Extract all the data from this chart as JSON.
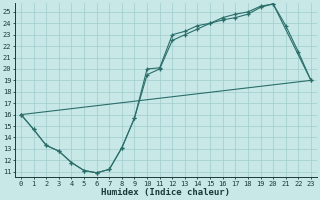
{
  "xlabel": "Humidex (Indice chaleur)",
  "bg_color": "#c8e8e8",
  "grid_color": "#a0cccc",
  "line_color": "#2a6e6a",
  "xlim": [
    -0.5,
    23.5
  ],
  "ylim": [
    10.5,
    25.8
  ],
  "xticks": [
    0,
    1,
    2,
    3,
    4,
    5,
    6,
    7,
    8,
    9,
    10,
    11,
    12,
    13,
    14,
    15,
    16,
    17,
    18,
    19,
    20,
    21,
    22,
    23
  ],
  "yticks": [
    11,
    12,
    13,
    14,
    15,
    16,
    17,
    18,
    19,
    20,
    21,
    22,
    23,
    24,
    25
  ],
  "curve1_x": [
    0,
    1,
    2,
    3,
    4,
    5,
    6,
    7,
    8,
    9,
    10,
    11,
    12,
    13,
    14,
    15,
    16,
    17,
    18,
    19,
    20,
    21,
    22,
    23
  ],
  "curve1_y": [
    16.0,
    14.7,
    13.3,
    12.8,
    11.8,
    11.1,
    10.9,
    11.2,
    13.1,
    15.7,
    20.0,
    20.1,
    23.0,
    23.3,
    23.8,
    24.0,
    24.5,
    24.8,
    25.0,
    25.5,
    25.7,
    23.8,
    21.5,
    19.0
  ],
  "curve2_x": [
    0,
    1,
    2,
    3,
    4,
    5,
    6,
    7,
    8,
    9,
    10,
    11,
    12,
    13,
    14,
    15,
    16,
    17,
    18,
    19,
    20,
    23
  ],
  "curve2_y": [
    16.0,
    14.7,
    13.3,
    12.8,
    11.8,
    11.1,
    10.9,
    11.2,
    13.1,
    15.7,
    19.5,
    20.0,
    22.5,
    23.0,
    23.5,
    24.0,
    24.3,
    24.5,
    24.8,
    25.4,
    25.7,
    19.0
  ],
  "line3_x": [
    0,
    23
  ],
  "line3_y": [
    16.0,
    19.0
  ]
}
